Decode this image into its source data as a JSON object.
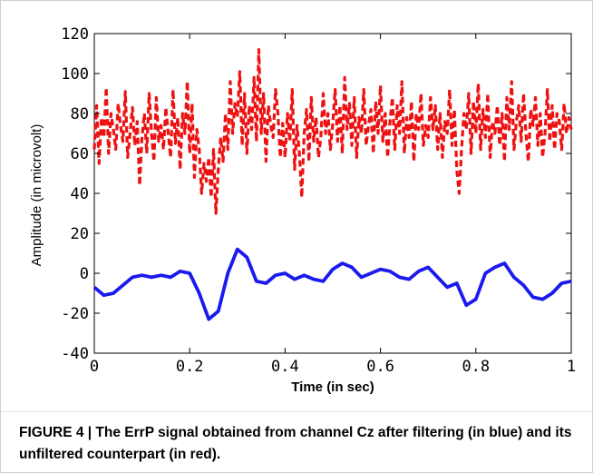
{
  "caption": "FIGURE 4 | The ErrP signal obtained from channel Cz after filtering (in blue) and its unfiltered counterpart (in red).",
  "chart_data": {
    "type": "line",
    "title": "",
    "xlabel": "Time (in sec)",
    "ylabel": "Amplitude (in microvolt)",
    "xlim": [
      0,
      1
    ],
    "ylim": [
      -40,
      120
    ],
    "xticks": [
      0,
      0.2,
      0.4,
      0.6,
      0.8,
      1
    ],
    "xtick_labels": [
      "0",
      "0.2",
      "0.4",
      "0.6",
      "0.8",
      "1"
    ],
    "yticks": [
      -40,
      -20,
      0,
      20,
      40,
      60,
      80,
      100,
      120
    ],
    "ytick_labels": [
      "-40",
      "-20",
      "0",
      "20",
      "40",
      "60",
      "80",
      "100",
      "120"
    ],
    "grid": false,
    "series": [
      {
        "color": "#ee1111",
        "style": "dashed",
        "x": [
          0,
          0.005,
          0.01,
          0.015,
          0.02,
          0.025,
          0.03,
          0.035,
          0.04,
          0.045,
          0.05,
          0.055,
          0.06,
          0.065,
          0.07,
          0.075,
          0.08,
          0.085,
          0.09,
          0.095,
          0.1,
          0.105,
          0.11,
          0.115,
          0.12,
          0.125,
          0.13,
          0.135,
          0.14,
          0.145,
          0.15,
          0.155,
          0.16,
          0.165,
          0.17,
          0.175,
          0.18,
          0.185,
          0.19,
          0.195,
          0.2,
          0.205,
          0.21,
          0.215,
          0.22,
          0.225,
          0.23,
          0.235,
          0.24,
          0.245,
          0.25,
          0.255,
          0.26,
          0.265,
          0.27,
          0.275,
          0.28,
          0.285,
          0.29,
          0.295,
          0.3,
          0.305,
          0.31,
          0.315,
          0.32,
          0.325,
          0.33,
          0.335,
          0.34,
          0.345,
          0.35,
          0.355,
          0.36,
          0.365,
          0.37,
          0.375,
          0.38,
          0.385,
          0.39,
          0.395,
          0.4,
          0.405,
          0.41,
          0.415,
          0.42,
          0.425,
          0.43,
          0.435,
          0.44,
          0.445,
          0.45,
          0.455,
          0.46,
          0.465,
          0.47,
          0.475,
          0.48,
          0.485,
          0.49,
          0.495,
          0.5,
          0.505,
          0.51,
          0.515,
          0.52,
          0.525,
          0.53,
          0.535,
          0.54,
          0.545,
          0.55,
          0.555,
          0.56,
          0.565,
          0.57,
          0.575,
          0.58,
          0.585,
          0.59,
          0.595,
          0.6,
          0.605,
          0.61,
          0.615,
          0.62,
          0.625,
          0.63,
          0.635,
          0.64,
          0.645,
          0.65,
          0.655,
          0.66,
          0.665,
          0.67,
          0.675,
          0.68,
          0.685,
          0.69,
          0.695,
          0.7,
          0.705,
          0.71,
          0.715,
          0.72,
          0.725,
          0.73,
          0.735,
          0.74,
          0.745,
          0.75,
          0.755,
          0.76,
          0.765,
          0.77,
          0.775,
          0.78,
          0.785,
          0.79,
          0.795,
          0.8,
          0.805,
          0.81,
          0.815,
          0.82,
          0.825,
          0.83,
          0.835,
          0.84,
          0.845,
          0.85,
          0.855,
          0.86,
          0.865,
          0.87,
          0.875,
          0.88,
          0.885,
          0.89,
          0.895,
          0.9,
          0.905,
          0.91,
          0.915,
          0.92,
          0.925,
          0.93,
          0.935,
          0.94,
          0.945,
          0.95,
          0.955,
          0.96,
          0.965,
          0.97,
          0.975,
          0.98,
          0.985,
          0.99,
          0.995,
          1
        ],
        "values": [
          62,
          84,
          55,
          78,
          68,
          93,
          60,
          80,
          72,
          62,
          85,
          74,
          66,
          91,
          58,
          70,
          83,
          64,
          76,
          44,
          68,
          80,
          60,
          90,
          70,
          56,
          88,
          66,
          74,
          62,
          83,
          70,
          58,
          92,
          65,
          78,
          52,
          80,
          70,
          96,
          60,
          85,
          48,
          72,
          62,
          40,
          55,
          46,
          58,
          38,
          62,
          30,
          52,
          68,
          56,
          80,
          62,
          96,
          70,
          85,
          78,
          101,
          64,
          90,
          60,
          84,
          72,
          98,
          66,
          112,
          70,
          90,
          56,
          84,
          74,
          68,
          92,
          80,
          58,
          75,
          58,
          80,
          66,
          92,
          52,
          74,
          60,
          38,
          70,
          82,
          56,
          88,
          66,
          78,
          58,
          68,
          90,
          70,
          80,
          62,
          75,
          92,
          66,
          84,
          60,
          98,
          72,
          85,
          64,
          88,
          58,
          78,
          70,
          92,
          64,
          74,
          82,
          60,
          86,
          70,
          94,
          66,
          80,
          58,
          76,
          88,
          62,
          84,
          70,
          96,
          60,
          78,
          68,
          86,
          56,
          80,
          72,
          90,
          64,
          74,
          68,
          88,
          72,
          84,
          62,
          80,
          58,
          76,
          70,
          92,
          64,
          82,
          52,
          40,
          62,
          80,
          72,
          90,
          60,
          86,
          70,
          95,
          62,
          82,
          68,
          90,
          58,
          76,
          70,
          84,
          64,
          80,
          56,
          88,
          72,
          96,
          62,
          76,
          84,
          66,
          90,
          70,
          56,
          82,
          74,
          88,
          64,
          80,
          58,
          70,
          92,
          66,
          84,
          62,
          80,
          76,
          62,
          85,
          70,
          78,
          72
        ]
      },
      {
        "color": "#1a1aee",
        "style": "solid",
        "x": [
          0,
          0.02,
          0.04,
          0.06,
          0.08,
          0.1,
          0.12,
          0.14,
          0.16,
          0.18,
          0.2,
          0.22,
          0.24,
          0.26,
          0.28,
          0.3,
          0.32,
          0.34,
          0.36,
          0.38,
          0.4,
          0.42,
          0.44,
          0.46,
          0.48,
          0.5,
          0.52,
          0.54,
          0.56,
          0.58,
          0.6,
          0.62,
          0.64,
          0.66,
          0.68,
          0.7,
          0.72,
          0.74,
          0.76,
          0.78,
          0.8,
          0.82,
          0.84,
          0.86,
          0.88,
          0.9,
          0.92,
          0.94,
          0.96,
          0.98,
          1
        ],
        "values": [
          -7,
          -11,
          -10,
          -6,
          -2,
          -1,
          -2,
          -1,
          -2,
          1,
          0,
          -10,
          -23,
          -19,
          0,
          12,
          8,
          -4,
          -5,
          -1,
          0,
          -3,
          -1,
          -3,
          -4,
          2,
          5,
          3,
          -2,
          0,
          2,
          1,
          -2,
          -3,
          1,
          3,
          -2,
          -7,
          -5,
          -16,
          -13,
          0,
          3,
          5,
          -2,
          -6,
          -12,
          -13,
          -10,
          -5,
          -4
        ]
      }
    ]
  }
}
